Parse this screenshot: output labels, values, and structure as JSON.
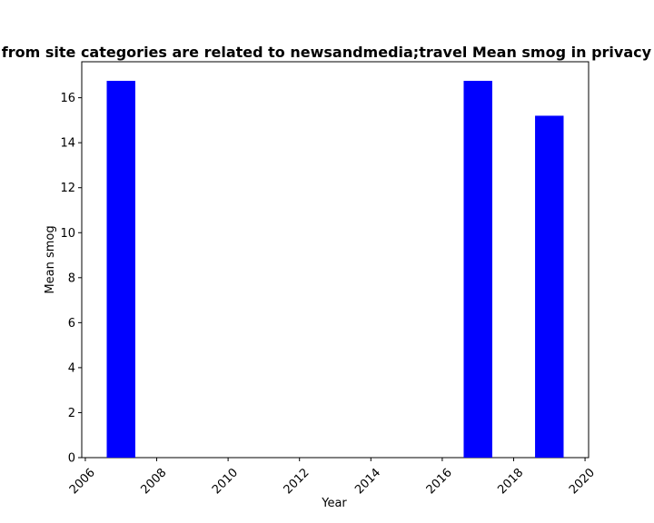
{
  "chart_data": {
    "type": "bar",
    "title": "Privacy policies from site categories are related to newsandmedia;travel Mean smog in privacy policies by year",
    "xlabel": "Year",
    "ylabel": "Mean smog",
    "x": [
      2007,
      2017,
      2019
    ],
    "values": [
      16.75,
      16.75,
      15.2
    ],
    "bar_width_years": 0.8,
    "xlim": [
      2005.9,
      2020.1
    ],
    "ylim": [
      0,
      17.6
    ],
    "xticks": [
      2006,
      2008,
      2010,
      2012,
      2014,
      2016,
      2018,
      2020
    ],
    "yticks": [
      0,
      2,
      4,
      6,
      8,
      10,
      12,
      14,
      16
    ],
    "bar_color": "#0000ff",
    "grid": false,
    "legend": "none"
  }
}
